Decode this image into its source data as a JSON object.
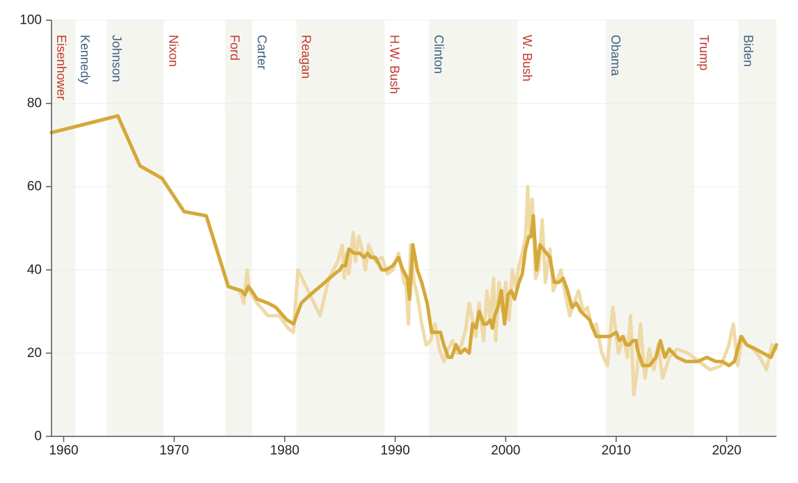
{
  "chart_data": {
    "type": "line",
    "title": "",
    "xlabel": "",
    "ylabel": "",
    "xlim": [
      1958.9,
      2024.5
    ],
    "ylim": [
      0,
      100
    ],
    "x_ticks": [
      1960,
      1970,
      1980,
      1990,
      2000,
      2010,
      2020
    ],
    "y_ticks": [
      0,
      20,
      40,
      60,
      80,
      100
    ],
    "grid": "horizontal",
    "colors": {
      "line": "#d4a93a",
      "raw_line": "#ecd59a",
      "shade": "#f5f5f0",
      "republican": "#c0392b",
      "democrat": "#3d6080",
      "axis": "#555555"
    },
    "presidents": [
      {
        "name": "Eisenhower",
        "start": 1958.9,
        "end": 1961.05,
        "party": "R",
        "shaded": true
      },
      {
        "name": "Kennedy",
        "start": 1961.05,
        "end": 1963.9,
        "party": "D",
        "shaded": false
      },
      {
        "name": "Johnson",
        "start": 1963.9,
        "end": 1969.05,
        "party": "D",
        "shaded": true
      },
      {
        "name": "Nixon",
        "start": 1969.05,
        "end": 1974.6,
        "party": "R",
        "shaded": false
      },
      {
        "name": "Ford",
        "start": 1974.6,
        "end": 1977.05,
        "party": "R",
        "shaded": true
      },
      {
        "name": "Carter",
        "start": 1977.05,
        "end": 1981.05,
        "party": "D",
        "shaded": false
      },
      {
        "name": "Reagan",
        "start": 1981.05,
        "end": 1989.05,
        "party": "R",
        "shaded": true
      },
      {
        "name": "H.W. Bush",
        "start": 1989.05,
        "end": 1993.05,
        "party": "R",
        "shaded": false
      },
      {
        "name": "Clinton",
        "start": 1993.05,
        "end": 2001.05,
        "party": "D",
        "shaded": true
      },
      {
        "name": "W. Bush",
        "start": 2001.05,
        "end": 2009.05,
        "party": "R",
        "shaded": false
      },
      {
        "name": "Obama",
        "start": 2009.05,
        "end": 2017.05,
        "party": "D",
        "shaded": true
      },
      {
        "name": "Trump",
        "start": 2017.05,
        "end": 2021.05,
        "party": "R",
        "shaded": false
      },
      {
        "name": "Biden",
        "start": 2021.05,
        "end": 2024.5,
        "party": "D",
        "shaded": true
      }
    ],
    "series": [
      {
        "key": "raw",
        "x": [
          1958.9,
          1964.9,
          1966.9,
          1968.9,
          1970.9,
          1972.9,
          1974.9,
          1975.9,
          1976.1,
          1976.3,
          1976.6,
          1976.8,
          1977.5,
          1978.5,
          1979.5,
          1980.3,
          1980.8,
          1981.2,
          1982.3,
          1983.2,
          1984.0,
          1984.8,
          1985.2,
          1985.4,
          1985.6,
          1985.8,
          1986.2,
          1986.4,
          1986.7,
          1987.0,
          1987.3,
          1987.6,
          1988.2,
          1988.8,
          1989.3,
          1989.8,
          1990.3,
          1990.6,
          1990.8,
          1991.0,
          1991.2,
          1991.4,
          1991.7,
          1992.0,
          1992.4,
          1992.8,
          1993.2,
          1993.6,
          1994.0,
          1994.4,
          1994.8,
          1995.2,
          1995.6,
          1996.0,
          1996.4,
          1996.7,
          1997.0,
          1997.3,
          1997.6,
          1998.0,
          1998.3,
          1998.6,
          1998.9,
          1999.1,
          1999.4,
          1999.7,
          2000.0,
          2000.3,
          2000.6,
          2000.9,
          2001.2,
          2001.5,
          2001.8,
          2002.0,
          2002.2,
          2002.4,
          2002.7,
          2003.0,
          2003.3,
          2003.6,
          2004.0,
          2004.3,
          2004.6,
          2005.0,
          2005.4,
          2005.8,
          2006.2,
          2006.6,
          2007.0,
          2007.4,
          2007.8,
          2008.2,
          2008.7,
          2009.2,
          2009.7,
          2010.2,
          2010.7,
          2011.0,
          2011.3,
          2011.6,
          2011.9,
          2012.2,
          2012.6,
          2013.0,
          2013.4,
          2013.8,
          2014.2,
          2014.8,
          2015.5,
          2016.5,
          2017.5,
          2018.5,
          2019.5,
          2020.2,
          2020.6,
          2021.0,
          2021.4,
          2021.8,
          2022.4,
          2023.0,
          2023.6,
          2024.1,
          2024.5
        ],
        "y": [
          73,
          77,
          65,
          62,
          54,
          53,
          36,
          35,
          34,
          32,
          40,
          35,
          32,
          29,
          29,
          26,
          25,
          40,
          34,
          29,
          38,
          42,
          46,
          38,
          44,
          39,
          49,
          42,
          48,
          45,
          40,
          46,
          42,
          43,
          39,
          40,
          44,
          40,
          37,
          36,
          27,
          46,
          37,
          34,
          27,
          22,
          23,
          27,
          21,
          18,
          21,
          23,
          20,
          22,
          26,
          32,
          28,
          24,
          32,
          23,
          35,
          28,
          38,
          23,
          37,
          30,
          37,
          28,
          40,
          36,
          41,
          44,
          48,
          60,
          48,
          57,
          38,
          40,
          52,
          37,
          45,
          35,
          37,
          40,
          34,
          29,
          32,
          35,
          30,
          31,
          26,
          27,
          20,
          17,
          31,
          20,
          24,
          19,
          29,
          10,
          16,
          27,
          14,
          21,
          16,
          22,
          14,
          19,
          21,
          20,
          18,
          16,
          17,
          22,
          27,
          17,
          24,
          22,
          21,
          19,
          16,
          22,
          21
        ]
      },
      {
        "key": "smoothed",
        "x": [
          1958.9,
          1964.9,
          1966.9,
          1968.9,
          1970.9,
          1972.9,
          1974.9,
          1976.1,
          1976.4,
          1976.7,
          1977.0,
          1977.5,
          1978.5,
          1979.2,
          1980.2,
          1980.8,
          1981.5,
          1982.3,
          1983.2,
          1984.5,
          1985.0,
          1985.2,
          1985.5,
          1985.8,
          1986.3,
          1986.8,
          1987.2,
          1987.5,
          1987.8,
          1988.2,
          1988.8,
          1989.2,
          1989.8,
          1990.3,
          1990.7,
          1990.9,
          1991.1,
          1991.3,
          1991.6,
          1992.0,
          1992.4,
          1992.9,
          1993.3,
          1993.7,
          1994.1,
          1994.4,
          1994.8,
          1995.1,
          1995.5,
          1995.9,
          1996.3,
          1996.7,
          1997.0,
          1997.3,
          1997.6,
          1998.0,
          1998.3,
          1998.6,
          1998.8,
          1999.0,
          1999.3,
          1999.6,
          1999.9,
          2000.2,
          2000.5,
          2000.8,
          2001.2,
          2001.5,
          2001.8,
          2002.1,
          2002.3,
          2002.5,
          2002.8,
          2003.1,
          2003.4,
          2003.7,
          2004.0,
          2004.4,
          2004.8,
          2005.2,
          2005.6,
          2006.0,
          2006.4,
          2006.8,
          2007.2,
          2007.6,
          2008.2,
          2008.9,
          2009.4,
          2010.0,
          2010.3,
          2010.6,
          2010.9,
          2011.2,
          2011.5,
          2011.8,
          2011.9,
          2012.4,
          2013.0,
          2013.3,
          2013.6,
          2014.0,
          2014.4,
          2014.8,
          2015.5,
          2016.3,
          2017.4,
          2018.2,
          2019.0,
          2019.6,
          2020.2,
          2020.7,
          2021.0,
          2021.3,
          2021.8,
          2022.6,
          2023.3,
          2024.0,
          2024.5
        ],
        "y": [
          73,
          77,
          65,
          62,
          54,
          53,
          36,
          35,
          34,
          36,
          35,
          33,
          32,
          31,
          28,
          27,
          32,
          34,
          36,
          39,
          40,
          41,
          41,
          45,
          44,
          44,
          43,
          44,
          43,
          43,
          40,
          40,
          41,
          43,
          40,
          39,
          38,
          33,
          46,
          40,
          37,
          32,
          25,
          25,
          25,
          22,
          19,
          19,
          22,
          20,
          21,
          20,
          27,
          26,
          30,
          27,
          27,
          28,
          26,
          29,
          31,
          35,
          27,
          34,
          35,
          33,
          37,
          39,
          45,
          48,
          48,
          53,
          40,
          46,
          45,
          44,
          43,
          37,
          37,
          38,
          35,
          31,
          32,
          30,
          29,
          28,
          24,
          24,
          24,
          25,
          23,
          24,
          22,
          22,
          23,
          23,
          21,
          17,
          17,
          18,
          19,
          23,
          19,
          21,
          19,
          18,
          18,
          19,
          18,
          18,
          17,
          18,
          21,
          24,
          22,
          21,
          20,
          19,
          22
        ]
      }
    ]
  }
}
